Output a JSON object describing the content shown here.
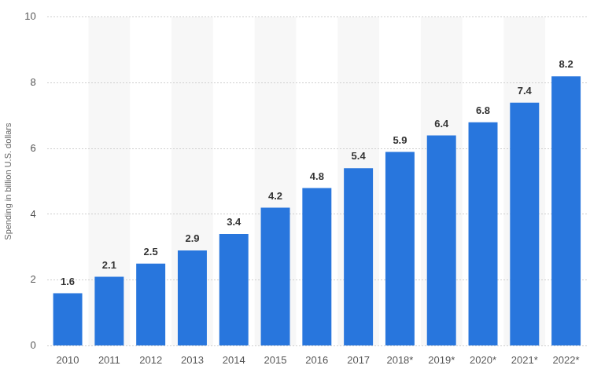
{
  "chart_data": {
    "type": "bar",
    "y_label": "Spending in billion U.S. dollars",
    "categories": [
      "2010",
      "2011",
      "2012",
      "2013",
      "2014",
      "2015",
      "2016",
      "2017",
      "2018*",
      "2019*",
      "2020*",
      "2021*",
      "2022*"
    ],
    "values": [
      1.6,
      2.1,
      2.5,
      2.9,
      3.4,
      4.2,
      4.8,
      5.4,
      5.9,
      6.4,
      6.8,
      7.4,
      8.2
    ],
    "color": "#2876dd",
    "ylim": [
      0,
      10
    ],
    "yticks": [
      0,
      2,
      4,
      6,
      8,
      10
    ],
    "grid": true,
    "data_labels": true
  }
}
